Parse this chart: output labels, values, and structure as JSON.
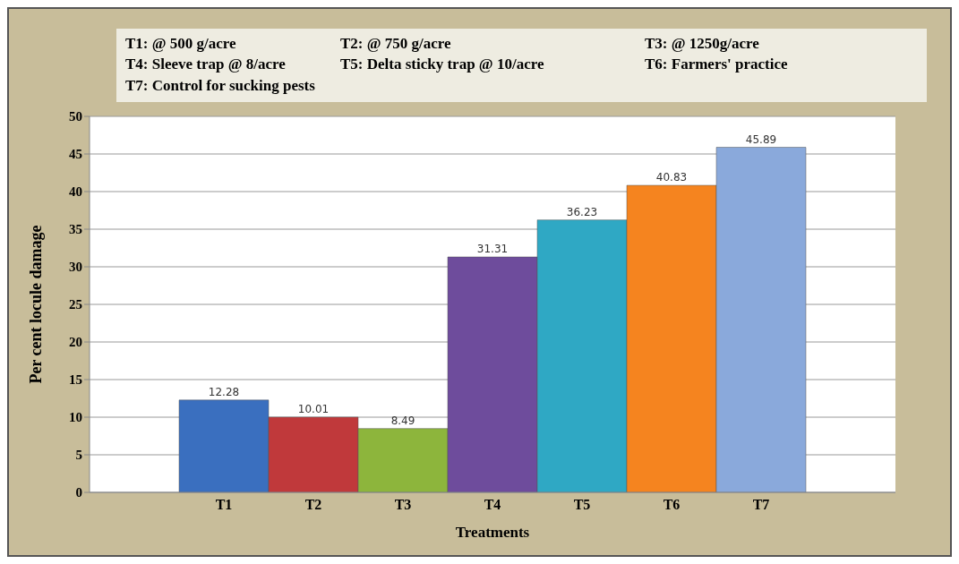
{
  "chart_data": {
    "type": "bar",
    "xlabel": "Treatments",
    "ylabel": "Per cent locule damage",
    "annotations": [
      "T1: @ 500 g/acre",
      "T2: @ 750 g/acre",
      "T3: @ 1250g/acre",
      "T4: Sleeve trap @ 8/acre",
      "T5: Delta sticky trap @ 10/acre",
      "T6: Farmers' practice",
      "T7: Control for sucking pests"
    ],
    "categories": [
      null,
      "T1",
      "T2",
      "T3",
      "T4",
      "T5",
      "T6",
      "T7",
      null
    ],
    "values": [
      null,
      12.28,
      10.01,
      8.49,
      31.31,
      36.23,
      40.83,
      45.89,
      null
    ],
    "colors": [
      "#3a6fbf",
      "#3a6fbf",
      "#c0393b",
      "#8db53c",
      "#6e4c9c",
      "#2fa8c4",
      "#f5841f",
      "#8aa9db",
      "#8aa9db"
    ],
    "ylim": [
      0,
      50
    ],
    "yticks": [
      0,
      5,
      10,
      15,
      20,
      25,
      30,
      35,
      40,
      45,
      50
    ],
    "grid": "y",
    "data_labels": true
  }
}
